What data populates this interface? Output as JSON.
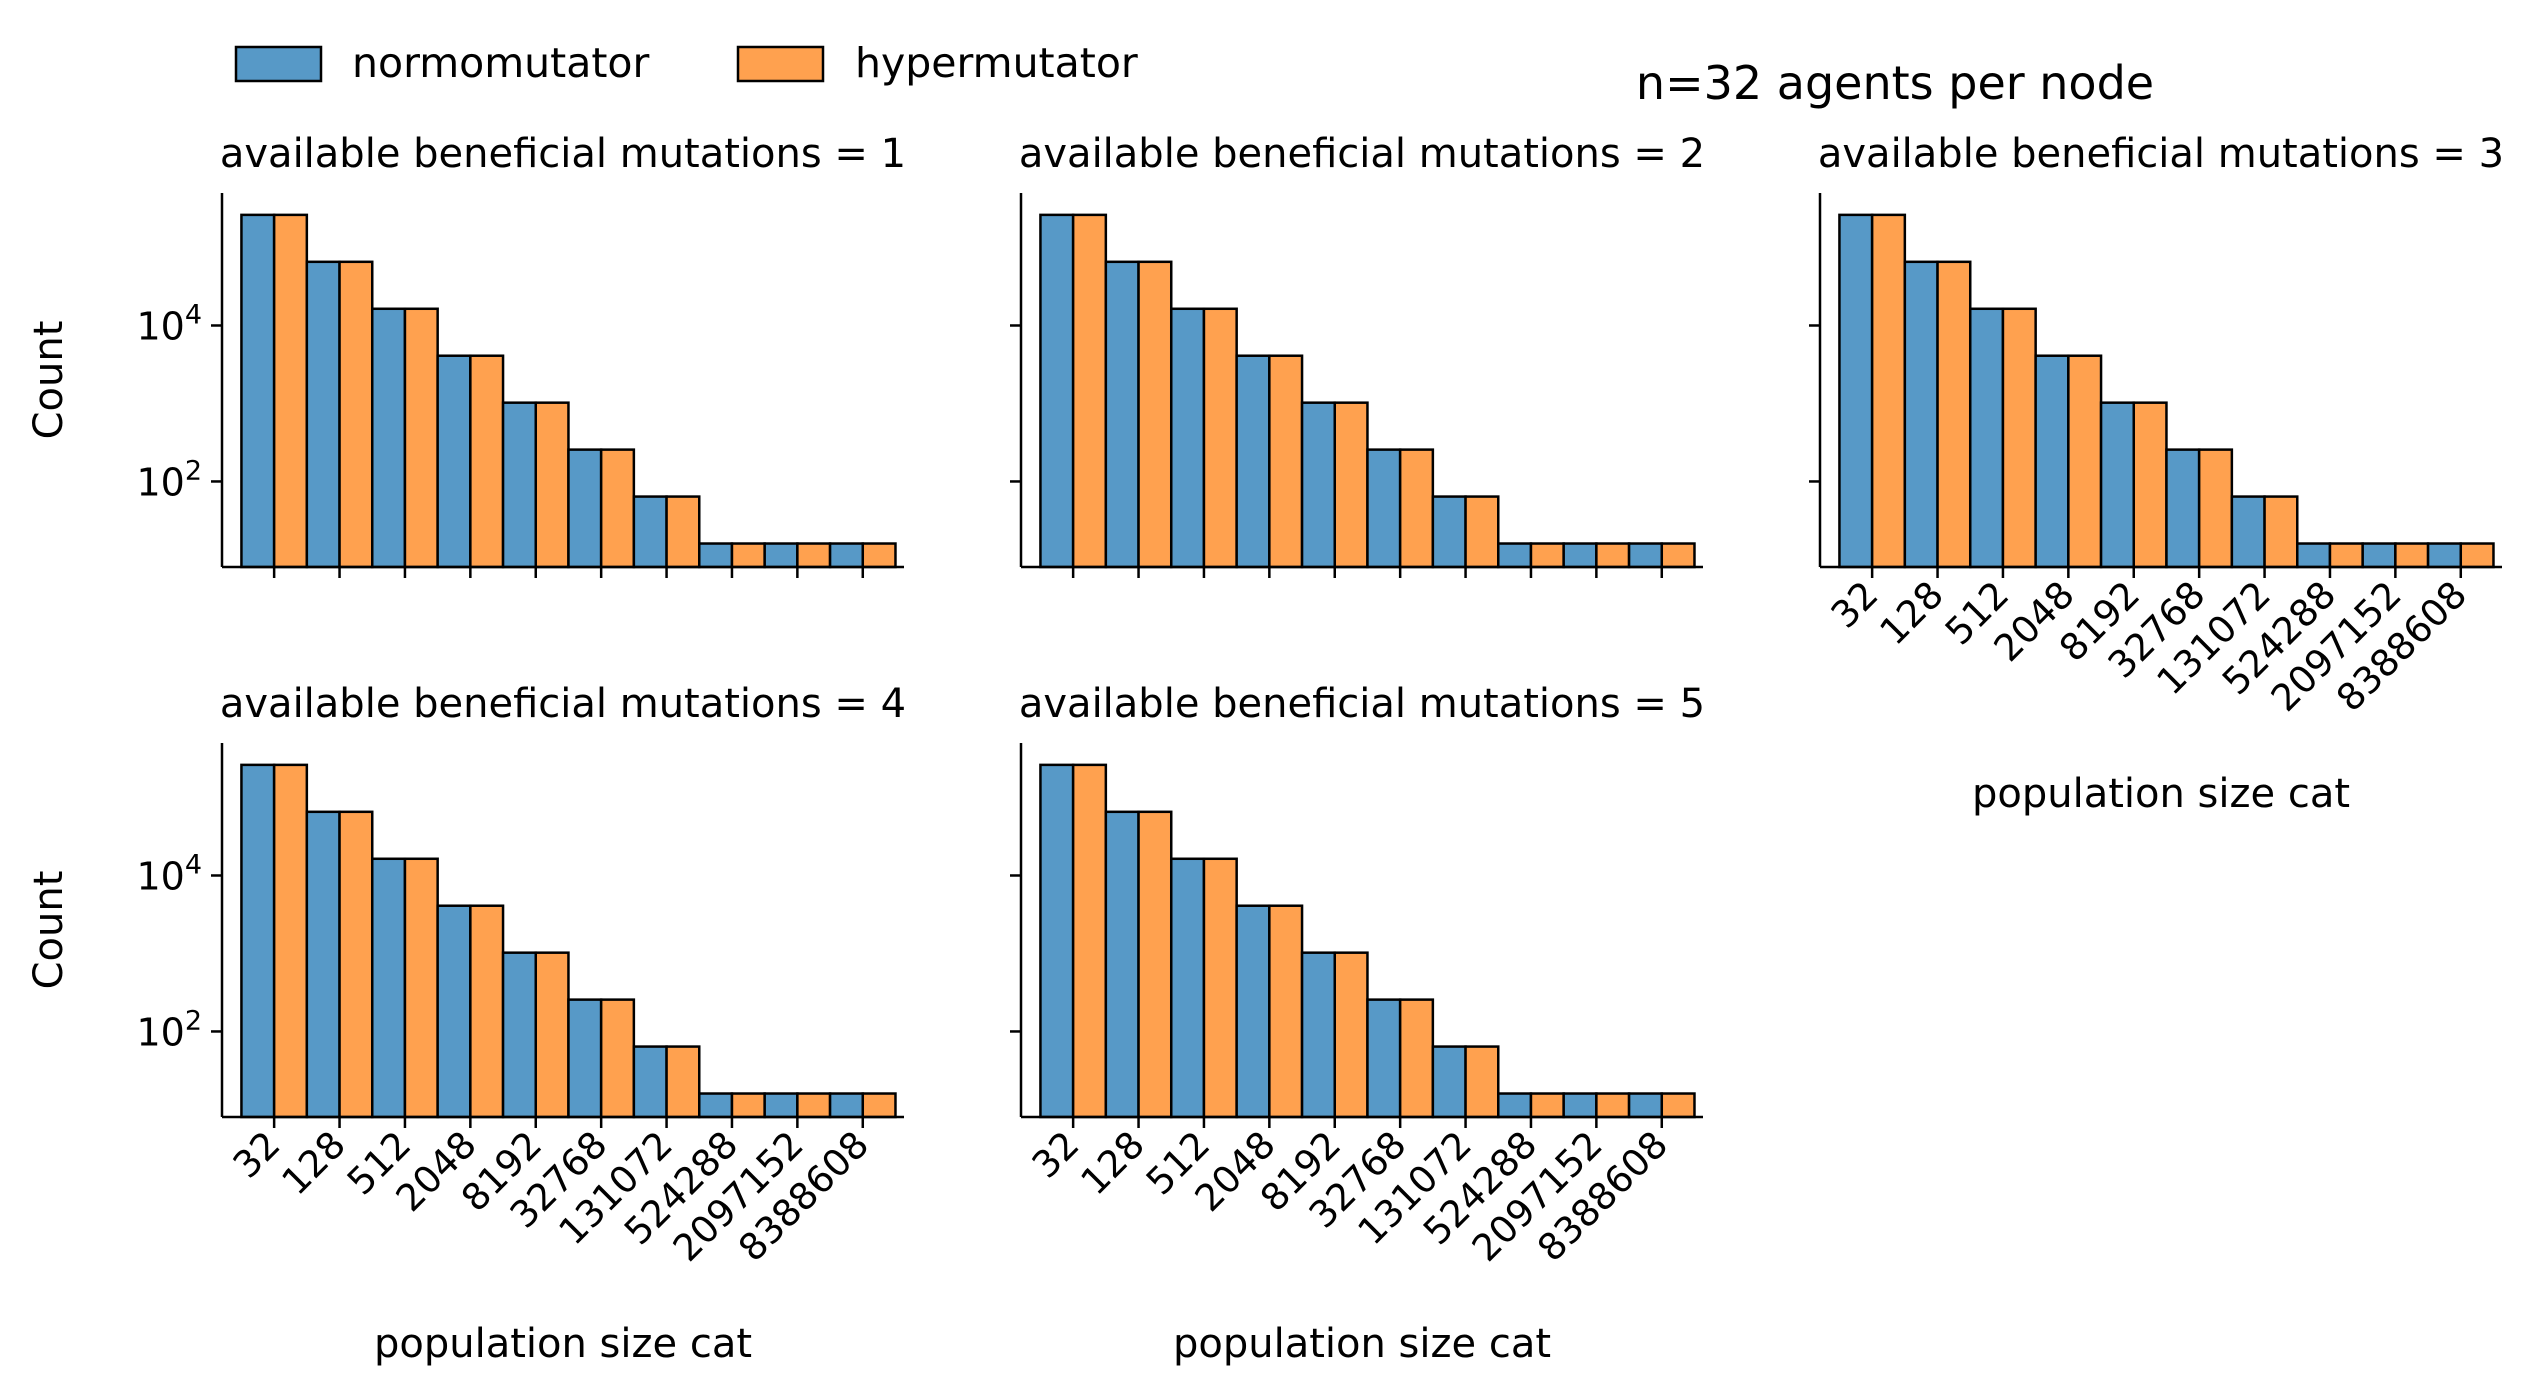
{
  "figure": {
    "suptitle": "n=32 agents per node"
  },
  "legend": {
    "placement": "top-left",
    "entries": [
      {
        "label": "normomutator",
        "color": "#5799c7"
      },
      {
        "label": "hypermutator",
        "color": "#ffa14f"
      }
    ]
  },
  "chart_data": [
    {
      "type": "bar",
      "title": "available beneficial mutations = 1",
      "xlabel": "",
      "ylabel": "Count",
      "yscale": "log",
      "ylim": [
        8,
        500000
      ],
      "yticks": [
        {
          "value": 100,
          "label": "10^2"
        },
        {
          "value": 10000,
          "label": "10^4"
        }
      ],
      "categories": [
        "32",
        "128",
        "512",
        "2048",
        "8192",
        "32768",
        "131072",
        "524288",
        "2097152",
        "8388608"
      ],
      "show_tick_labels": false,
      "series": [
        {
          "name": "normomutator",
          "values": [
            262144,
            65536,
            16384,
            4096,
            1024,
            256,
            64,
            16,
            16,
            16
          ]
        },
        {
          "name": "hypermutator",
          "values": [
            262144,
            65536,
            16384,
            4096,
            1024,
            256,
            64,
            16,
            16,
            16
          ]
        }
      ]
    },
    {
      "type": "bar",
      "title": "available beneficial mutations = 2",
      "xlabel": "",
      "ylabel": "",
      "yscale": "log",
      "ylim": [
        8,
        500000
      ],
      "yticks": [
        {
          "value": 100,
          "label": ""
        },
        {
          "value": 10000,
          "label": ""
        }
      ],
      "categories": [
        "32",
        "128",
        "512",
        "2048",
        "8192",
        "32768",
        "131072",
        "524288",
        "2097152",
        "8388608"
      ],
      "show_tick_labels": false,
      "series": [
        {
          "name": "normomutator",
          "values": [
            262144,
            65536,
            16384,
            4096,
            1024,
            256,
            64,
            16,
            16,
            16
          ]
        },
        {
          "name": "hypermutator",
          "values": [
            262144,
            65536,
            16384,
            4096,
            1024,
            256,
            64,
            16,
            16,
            16
          ]
        }
      ]
    },
    {
      "type": "bar",
      "title": "available beneficial mutations = 3",
      "xlabel": "population size cat",
      "ylabel": "",
      "yscale": "log",
      "ylim": [
        8,
        500000
      ],
      "yticks": [
        {
          "value": 100,
          "label": ""
        },
        {
          "value": 10000,
          "label": ""
        }
      ],
      "categories": [
        "32",
        "128",
        "512",
        "2048",
        "8192",
        "32768",
        "131072",
        "524288",
        "2097152",
        "8388608"
      ],
      "show_tick_labels": true,
      "series": [
        {
          "name": "normomutator",
          "values": [
            262144,
            65536,
            16384,
            4096,
            1024,
            256,
            64,
            16,
            16,
            16
          ]
        },
        {
          "name": "hypermutator",
          "values": [
            262144,
            65536,
            16384,
            4096,
            1024,
            256,
            64,
            16,
            16,
            16
          ]
        }
      ]
    },
    {
      "type": "bar",
      "title": "available beneficial mutations = 4",
      "xlabel": "population size cat",
      "ylabel": "Count",
      "yscale": "log",
      "ylim": [
        8,
        500000
      ],
      "yticks": [
        {
          "value": 100,
          "label": "10^2"
        },
        {
          "value": 10000,
          "label": "10^4"
        }
      ],
      "categories": [
        "32",
        "128",
        "512",
        "2048",
        "8192",
        "32768",
        "131072",
        "524288",
        "2097152",
        "8388608"
      ],
      "show_tick_labels": true,
      "series": [
        {
          "name": "normomutator",
          "values": [
            262144,
            65536,
            16384,
            4096,
            1024,
            256,
            64,
            16,
            16,
            16
          ]
        },
        {
          "name": "hypermutator",
          "values": [
            262144,
            65536,
            16384,
            4096,
            1024,
            256,
            64,
            16,
            16,
            16
          ]
        }
      ]
    },
    {
      "type": "bar",
      "title": "available beneficial mutations = 5",
      "xlabel": "population size cat",
      "ylabel": "",
      "yscale": "log",
      "ylim": [
        8,
        500000
      ],
      "yticks": [
        {
          "value": 100,
          "label": ""
        },
        {
          "value": 10000,
          "label": ""
        }
      ],
      "categories": [
        "32",
        "128",
        "512",
        "2048",
        "8192",
        "32768",
        "131072",
        "524288",
        "2097152",
        "8388608"
      ],
      "show_tick_labels": true,
      "series": [
        {
          "name": "normomutator",
          "values": [
            262144,
            65536,
            16384,
            4096,
            1024,
            256,
            64,
            16,
            16,
            16
          ]
        },
        {
          "name": "hypermutator",
          "values": [
            262144,
            65536,
            16384,
            4096,
            1024,
            256,
            64,
            16,
            16,
            16
          ]
        }
      ]
    }
  ]
}
